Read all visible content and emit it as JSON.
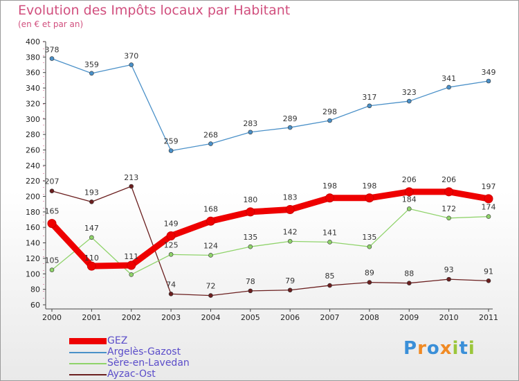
{
  "title": "Evolution des Impôts locaux par Habitant",
  "subtitle": "(en € et par an)",
  "brand": "Proxiti",
  "brand_letters": [
    {
      "ch": "P",
      "color": "#3a8fd8"
    },
    {
      "ch": "r",
      "color": "#f08a24"
    },
    {
      "ch": "o",
      "color": "#3a8fd8"
    },
    {
      "ch": "x",
      "color": "#f08a24"
    },
    {
      "ch": "i",
      "color": "#9bc63b"
    },
    {
      "ch": "t",
      "color": "#3a8fd8"
    },
    {
      "ch": "i",
      "color": "#9bc63b"
    }
  ],
  "chart_data": {
    "type": "line",
    "title": "Evolution des Impôts locaux par Habitant",
    "subtitle": "(en € et par an)",
    "categories": [
      "2000",
      "2001",
      "2002",
      "2003",
      "2004",
      "2005",
      "2006",
      "2007",
      "2008",
      "2009",
      "2010",
      "2011"
    ],
    "ylim": [
      60,
      400
    ],
    "yticks": [
      60,
      80,
      100,
      120,
      140,
      160,
      180,
      200,
      220,
      240,
      260,
      280,
      300,
      320,
      340,
      360,
      380,
      400
    ],
    "grid": false,
    "legend_position": "bottom-left",
    "series": [
      {
        "name": "GEZ",
        "color": "#ee0000",
        "values": [
          165,
          110,
          111,
          149,
          168,
          180,
          183,
          198,
          198,
          206,
          206,
          197
        ]
      },
      {
        "name": "Argelès-Gazost",
        "color": "#4a90c8",
        "values": [
          378,
          359,
          370,
          259,
          268,
          283,
          289,
          298,
          317,
          323,
          341,
          349
        ]
      },
      {
        "name": "Sère-en-Lavedan",
        "color": "#8fd36a",
        "values": [
          105,
          147,
          99,
          125,
          124,
          135,
          142,
          141,
          135,
          184,
          172,
          174
        ]
      },
      {
        "name": "Ayzac-Ost",
        "color": "#6b1f1f",
        "values": [
          207,
          193,
          213,
          74,
          72,
          78,
          79,
          85,
          89,
          88,
          93,
          91
        ]
      }
    ],
    "data_labels": [
      {
        "series": "GEZ",
        "values": [
          "165",
          "110",
          "111",
          "149",
          "168",
          "180",
          "183",
          "198",
          "198",
          "206",
          "206",
          "197"
        ]
      },
      {
        "series": "Argelès-Gazost",
        "values": [
          "378",
          "359",
          "370",
          "259",
          "268",
          "283",
          "289",
          "298",
          "317",
          "323",
          "341",
          "349"
        ]
      },
      {
        "series": "Sère-en-Lavedan",
        "values": [
          "105",
          "147",
          "",
          "125",
          "124",
          "135",
          "142",
          "141",
          "135",
          "184",
          "172",
          "174"
        ]
      },
      {
        "series": "Ayzac-Ost",
        "values": [
          "207",
          "193",
          "213",
          "74",
          "72",
          "78",
          "79",
          "85",
          "89",
          "88",
          "93",
          "91"
        ]
      }
    ]
  }
}
